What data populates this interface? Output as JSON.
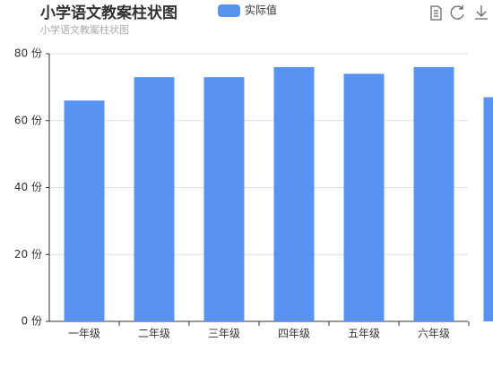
{
  "chart_data": {
    "type": "bar",
    "title": "小学语文教案柱状图",
    "subtitle": "小学语文教案柱状图",
    "series": [
      {
        "name": "实际值",
        "color": "#5893f2",
        "values": [
          66,
          73,
          73,
          76,
          74,
          76,
          67
        ]
      }
    ],
    "categories": [
      "一年级",
      "二年级",
      "三年级",
      "四年级",
      "五年级",
      "六年级",
      null
    ],
    "ylim": [
      0,
      80
    ],
    "yticks": [
      {
        "value": 0,
        "label": "0 份"
      },
      {
        "value": 20,
        "label": "20 份"
      },
      {
        "value": 40,
        "label": "40 份"
      },
      {
        "value": 60,
        "label": "60 份"
      },
      {
        "value": 80,
        "label": "80 份"
      }
    ],
    "grid": true
  }
}
